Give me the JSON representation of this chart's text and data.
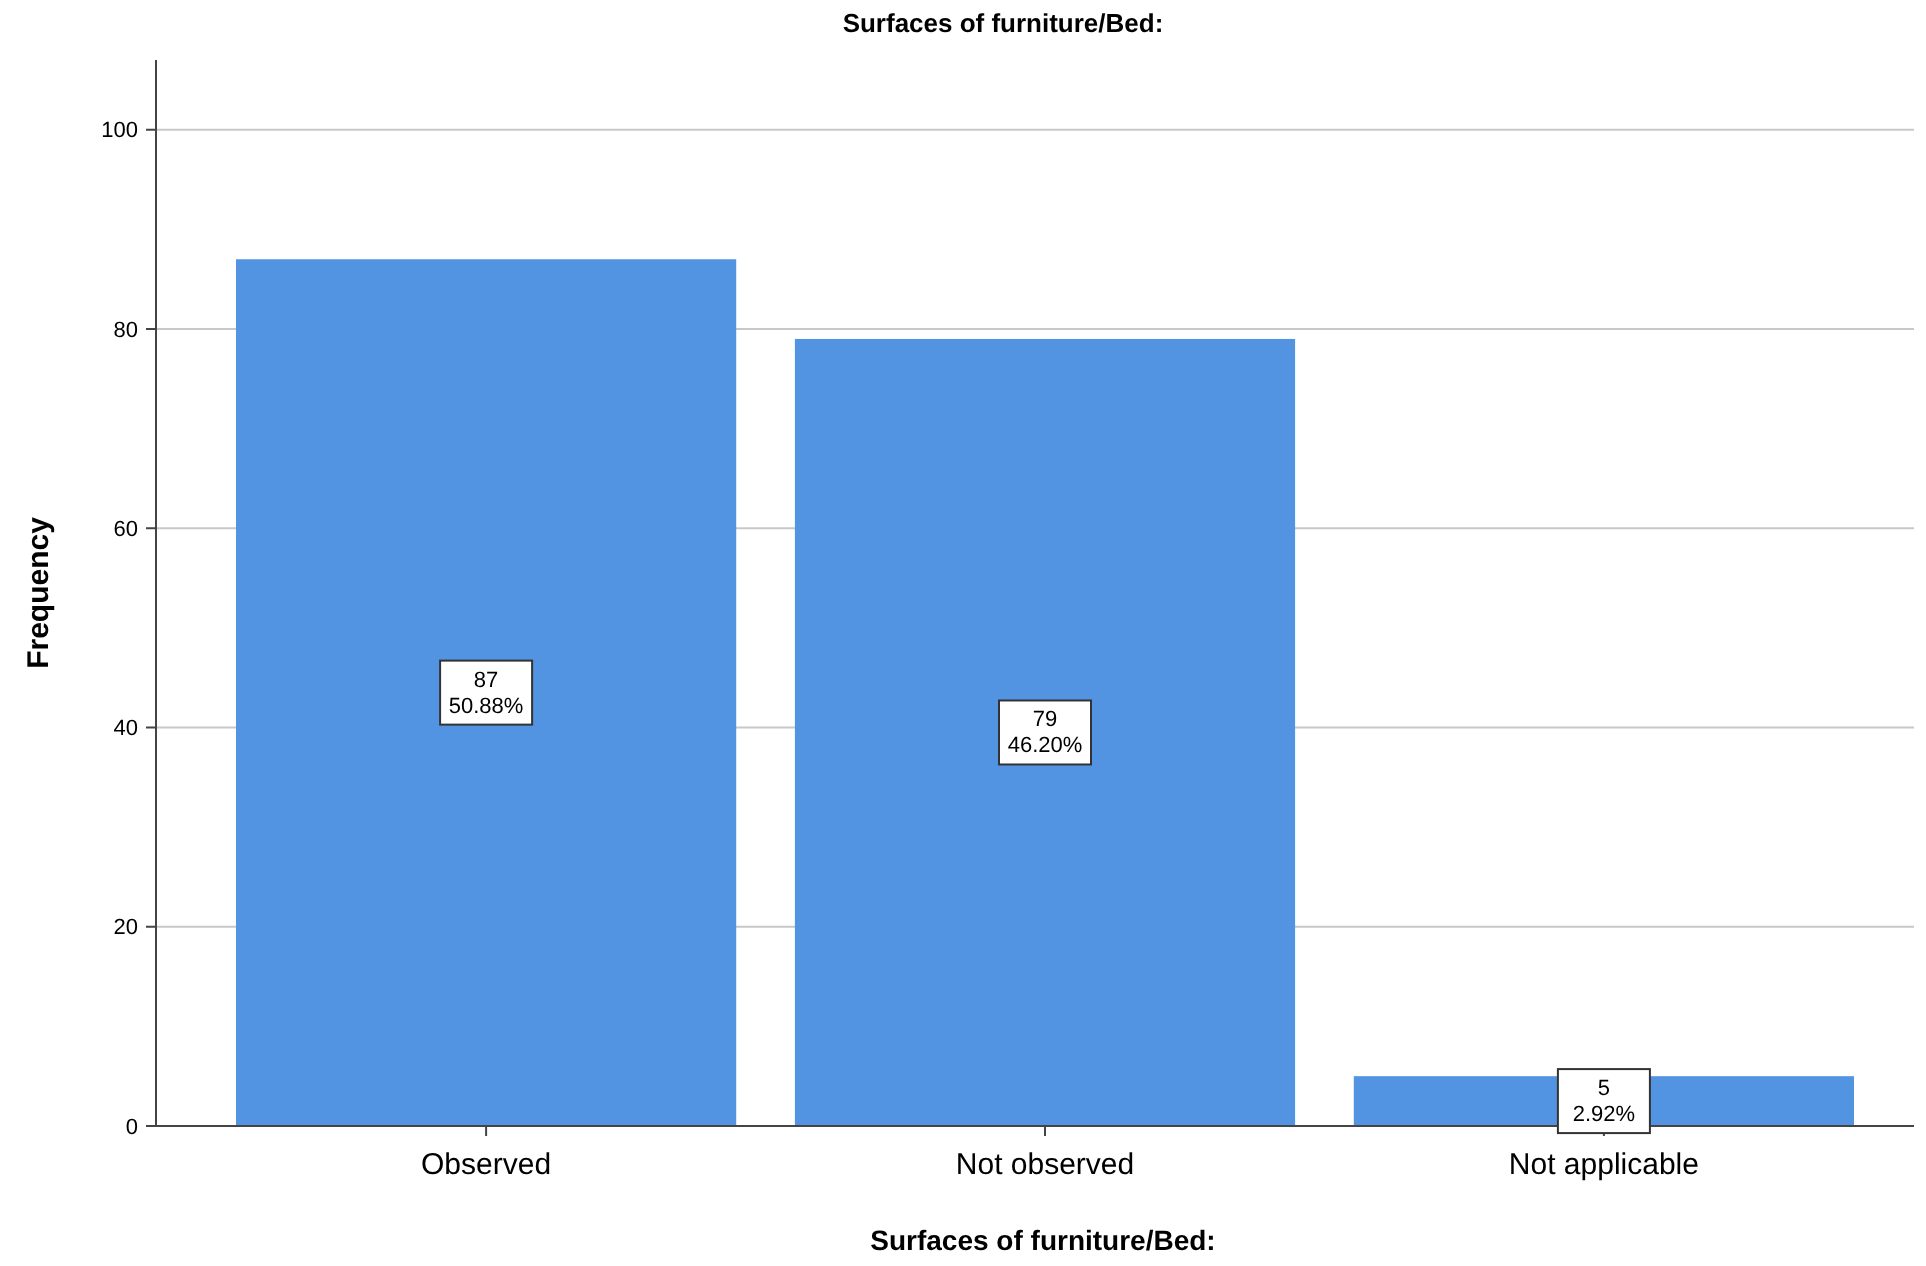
{
  "chart_data": {
    "type": "bar",
    "title": "Surfaces of furniture/Bed:",
    "xlabel": "Surfaces of furniture/Bed:",
    "ylabel": "Frequency",
    "categories": [
      "Observed",
      "Not observed",
      "Not applicable"
    ],
    "values": [
      87,
      79,
      5
    ],
    "color": "#5294e2",
    "value_labels": [
      "87\n50.88%",
      "79\n46.20%",
      "5\n2.92%"
    ],
    "ylim": [
      0,
      107
    ],
    "yticks": [
      0,
      20,
      40,
      60,
      80,
      100
    ],
    "grid": "y"
  }
}
